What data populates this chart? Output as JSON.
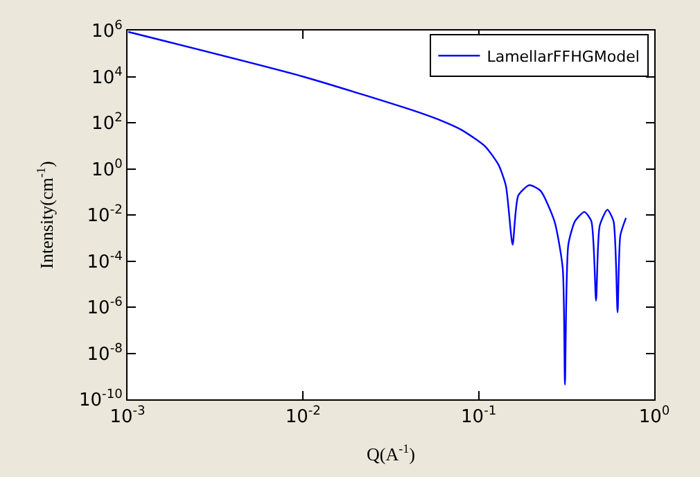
{
  "chart_data": {
    "type": "line",
    "xlabel": "Q(A$^{-1}$)",
    "ylabel": "Intensity(cm$^{-1}$)",
    "log": "xy",
    "legend": "top right",
    "xlim": [
      0.001,
      1
    ],
    "ylim": [
      1e-10,
      1000000.0
    ],
    "xticks": [
      {
        "value": 0.001,
        "label": "10$^{-3}$"
      },
      {
        "value": 0.01,
        "label": "10$^{-2}$"
      },
      {
        "value": 0.1,
        "label": "10$^{-1}$"
      },
      {
        "value": 1,
        "label": "10$^{0}$"
      }
    ],
    "yticks": [
      {
        "value": 1e-10,
        "label": "10$^{-10}$"
      },
      {
        "value": 1e-08,
        "label": "10$^{-8}$"
      },
      {
        "value": 1e-06,
        "label": "10$^{-6}$"
      },
      {
        "value": 0.0001,
        "label": "10$^{-4}$"
      },
      {
        "value": 0.01,
        "label": "10$^{-2}$"
      },
      {
        "value": 1,
        "label": "10$^{0}$"
      },
      {
        "value": 100,
        "label": "10$^{2}$"
      },
      {
        "value": 10000,
        "label": "10$^{4}$"
      },
      {
        "value": 1000000,
        "label": "10$^{6}$"
      }
    ],
    "series": [
      {
        "name": "LamellarFFHGModel",
        "color": "#0000ff",
        "x": [
          0.00101,
          0.01,
          0.0439,
          0.0631,
          0.0802,
          0.109,
          0.13,
          0.143,
          0.156,
          0.168,
          0.194,
          0.225,
          0.27,
          0.301,
          0.31,
          0.324,
          0.354,
          0.4,
          0.438,
          0.466,
          0.489,
          0.541,
          0.586,
          0.618,
          0.641,
          0.69
        ],
        "values": [
          870000,
          10000,
          309,
          112,
          47.9,
          9.3,
          1.45,
          0.178,
          0.00051,
          0.069,
          0.195,
          0.112,
          0.0054,
          5e-05,
          4.3e-10,
          0.00051,
          0.0054,
          0.0135,
          0.0054,
          1.9e-06,
          0.0034,
          0.017,
          0.0054,
          5.9e-07,
          0.0013,
          0.0074
        ]
      }
    ]
  }
}
